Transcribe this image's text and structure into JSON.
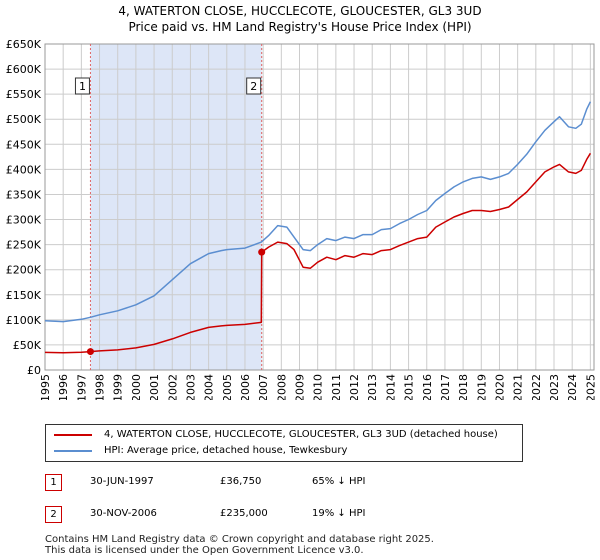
{
  "title": "4, WATERTON CLOSE, HUCCLECOTE, GLOUCESTER, GL3 3UD",
  "subtitle": "Price paid vs. HM Land Registry's House Price Index (HPI)",
  "colors": {
    "property": "#cc0000",
    "hpi": "#5b8ed0",
    "shade": "#dde6f7",
    "grid": "#cccccc",
    "marker_line": "#e06666"
  },
  "chart_data": {
    "type": "line",
    "title": "Price paid vs. HM Land Registry's House Price Index (HPI)",
    "xlabel": "",
    "ylabel": "",
    "xlim": [
      1995,
      2025.2
    ],
    "ylim": [
      0,
      650000
    ],
    "x_ticks": [
      "1995",
      "1996",
      "1997",
      "1998",
      "1999",
      "2000",
      "2001",
      "2002",
      "2003",
      "2004",
      "2005",
      "2006",
      "2007",
      "2008",
      "2009",
      "2010",
      "2011",
      "2012",
      "2013",
      "2014",
      "2015",
      "2016",
      "2017",
      "2018",
      "2019",
      "2020",
      "2021",
      "2022",
      "2023",
      "2024",
      "2025"
    ],
    "y_ticks": [
      {
        "value": 0,
        "label": "£0"
      },
      {
        "value": 50000,
        "label": "£50K"
      },
      {
        "value": 100000,
        "label": "£100K"
      },
      {
        "value": 150000,
        "label": "£150K"
      },
      {
        "value": 200000,
        "label": "£200K"
      },
      {
        "value": 250000,
        "label": "£250K"
      },
      {
        "value": 300000,
        "label": "£300K"
      },
      {
        "value": 350000,
        "label": "£350K"
      },
      {
        "value": 400000,
        "label": "£400K"
      },
      {
        "value": 450000,
        "label": "£450K"
      },
      {
        "value": 500000,
        "label": "£500K"
      },
      {
        "value": 550000,
        "label": "£550K"
      },
      {
        "value": 600000,
        "label": "£600K"
      },
      {
        "value": 650000,
        "label": "£650K"
      }
    ],
    "shaded_region": [
      1997.5,
      2006.92
    ],
    "markers": [
      {
        "label": "1",
        "x": 1997.5,
        "y": 36750
      },
      {
        "label": "2",
        "x": 2006.92,
        "y": 235000
      }
    ],
    "series": [
      {
        "name": "4, WATERTON CLOSE, HUCCLECOTE, GLOUCESTER, GL3 3UD (detached house)",
        "color": "#cc0000",
        "points": [
          [
            1995.0,
            35000
          ],
          [
            1996.0,
            34500
          ],
          [
            1997.0,
            35500
          ],
          [
            1997.5,
            36750
          ],
          [
            1998.0,
            38000
          ],
          [
            1999.0,
            40000
          ],
          [
            2000.0,
            44000
          ],
          [
            2001.0,
            51000
          ],
          [
            2002.0,
            62000
          ],
          [
            2003.0,
            75000
          ],
          [
            2004.0,
            85000
          ],
          [
            2004.7,
            88000
          ],
          [
            2005.0,
            89000
          ],
          [
            2006.0,
            91000
          ],
          [
            2006.9,
            95000
          ],
          [
            2006.92,
            235000
          ],
          [
            2007.3,
            245000
          ],
          [
            2007.8,
            255000
          ],
          [
            2008.3,
            252000
          ],
          [
            2008.7,
            240000
          ],
          [
            2009.2,
            205000
          ],
          [
            2009.6,
            203000
          ],
          [
            2010.0,
            215000
          ],
          [
            2010.5,
            225000
          ],
          [
            2011.0,
            220000
          ],
          [
            2011.5,
            228000
          ],
          [
            2012.0,
            225000
          ],
          [
            2012.5,
            232000
          ],
          [
            2013.0,
            230000
          ],
          [
            2013.5,
            238000
          ],
          [
            2014.0,
            240000
          ],
          [
            2014.5,
            248000
          ],
          [
            2015.0,
            255000
          ],
          [
            2015.5,
            262000
          ],
          [
            2016.0,
            265000
          ],
          [
            2016.5,
            285000
          ],
          [
            2017.0,
            295000
          ],
          [
            2017.5,
            305000
          ],
          [
            2018.0,
            312000
          ],
          [
            2018.5,
            318000
          ],
          [
            2019.0,
            318000
          ],
          [
            2019.5,
            316000
          ],
          [
            2020.0,
            320000
          ],
          [
            2020.5,
            325000
          ],
          [
            2021.0,
            340000
          ],
          [
            2021.5,
            355000
          ],
          [
            2022.0,
            375000
          ],
          [
            2022.5,
            395000
          ],
          [
            2023.0,
            405000
          ],
          [
            2023.3,
            410000
          ],
          [
            2023.8,
            395000
          ],
          [
            2024.2,
            392000
          ],
          [
            2024.5,
            398000
          ],
          [
            2024.8,
            420000
          ],
          [
            2025.0,
            432000
          ]
        ]
      },
      {
        "name": "HPI: Average price, detached house, Tewkesbury",
        "color": "#5b8ed0",
        "points": [
          [
            1995.0,
            98000
          ],
          [
            1996.0,
            96500
          ],
          [
            1997.0,
            101000
          ],
          [
            1997.5,
            105000
          ],
          [
            1998.0,
            110000
          ],
          [
            1999.0,
            118000
          ],
          [
            2000.0,
            130000
          ],
          [
            2001.0,
            148000
          ],
          [
            2002.0,
            180000
          ],
          [
            2003.0,
            212000
          ],
          [
            2004.0,
            232000
          ],
          [
            2004.7,
            238000
          ],
          [
            2005.0,
            240000
          ],
          [
            2006.0,
            243000
          ],
          [
            2006.9,
            255000
          ],
          [
            2007.3,
            268000
          ],
          [
            2007.8,
            288000
          ],
          [
            2008.3,
            285000
          ],
          [
            2008.7,
            265000
          ],
          [
            2009.2,
            240000
          ],
          [
            2009.6,
            238000
          ],
          [
            2010.0,
            250000
          ],
          [
            2010.5,
            262000
          ],
          [
            2011.0,
            258000
          ],
          [
            2011.5,
            265000
          ],
          [
            2012.0,
            262000
          ],
          [
            2012.5,
            270000
          ],
          [
            2013.0,
            270000
          ],
          [
            2013.5,
            280000
          ],
          [
            2014.0,
            282000
          ],
          [
            2014.5,
            292000
          ],
          [
            2015.0,
            300000
          ],
          [
            2015.5,
            310000
          ],
          [
            2016.0,
            318000
          ],
          [
            2016.5,
            338000
          ],
          [
            2017.0,
            352000
          ],
          [
            2017.5,
            365000
          ],
          [
            2018.0,
            375000
          ],
          [
            2018.5,
            382000
          ],
          [
            2019.0,
            385000
          ],
          [
            2019.5,
            380000
          ],
          [
            2020.0,
            385000
          ],
          [
            2020.5,
            392000
          ],
          [
            2021.0,
            410000
          ],
          [
            2021.5,
            430000
          ],
          [
            2022.0,
            455000
          ],
          [
            2022.5,
            478000
          ],
          [
            2023.0,
            495000
          ],
          [
            2023.3,
            505000
          ],
          [
            2023.8,
            485000
          ],
          [
            2024.2,
            482000
          ],
          [
            2024.5,
            490000
          ],
          [
            2024.8,
            520000
          ],
          [
            2025.0,
            535000
          ]
        ]
      }
    ]
  },
  "legend": {
    "property_label": "4, WATERTON CLOSE, HUCCLECOTE, GLOUCESTER, GL3 3UD (detached house)",
    "hpi_label": "HPI: Average price, detached house, Tewkesbury"
  },
  "sales": [
    {
      "num": "1",
      "date": "30-JUN-1997",
      "price": "£36,750",
      "delta": "65% ↓ HPI"
    },
    {
      "num": "2",
      "date": "30-NOV-2006",
      "price": "£235,000",
      "delta": "19% ↓ HPI"
    }
  ],
  "footer": {
    "line1": "Contains HM Land Registry data © Crown copyright and database right 2025.",
    "line2": "This data is licensed under the Open Government Licence v3.0."
  }
}
